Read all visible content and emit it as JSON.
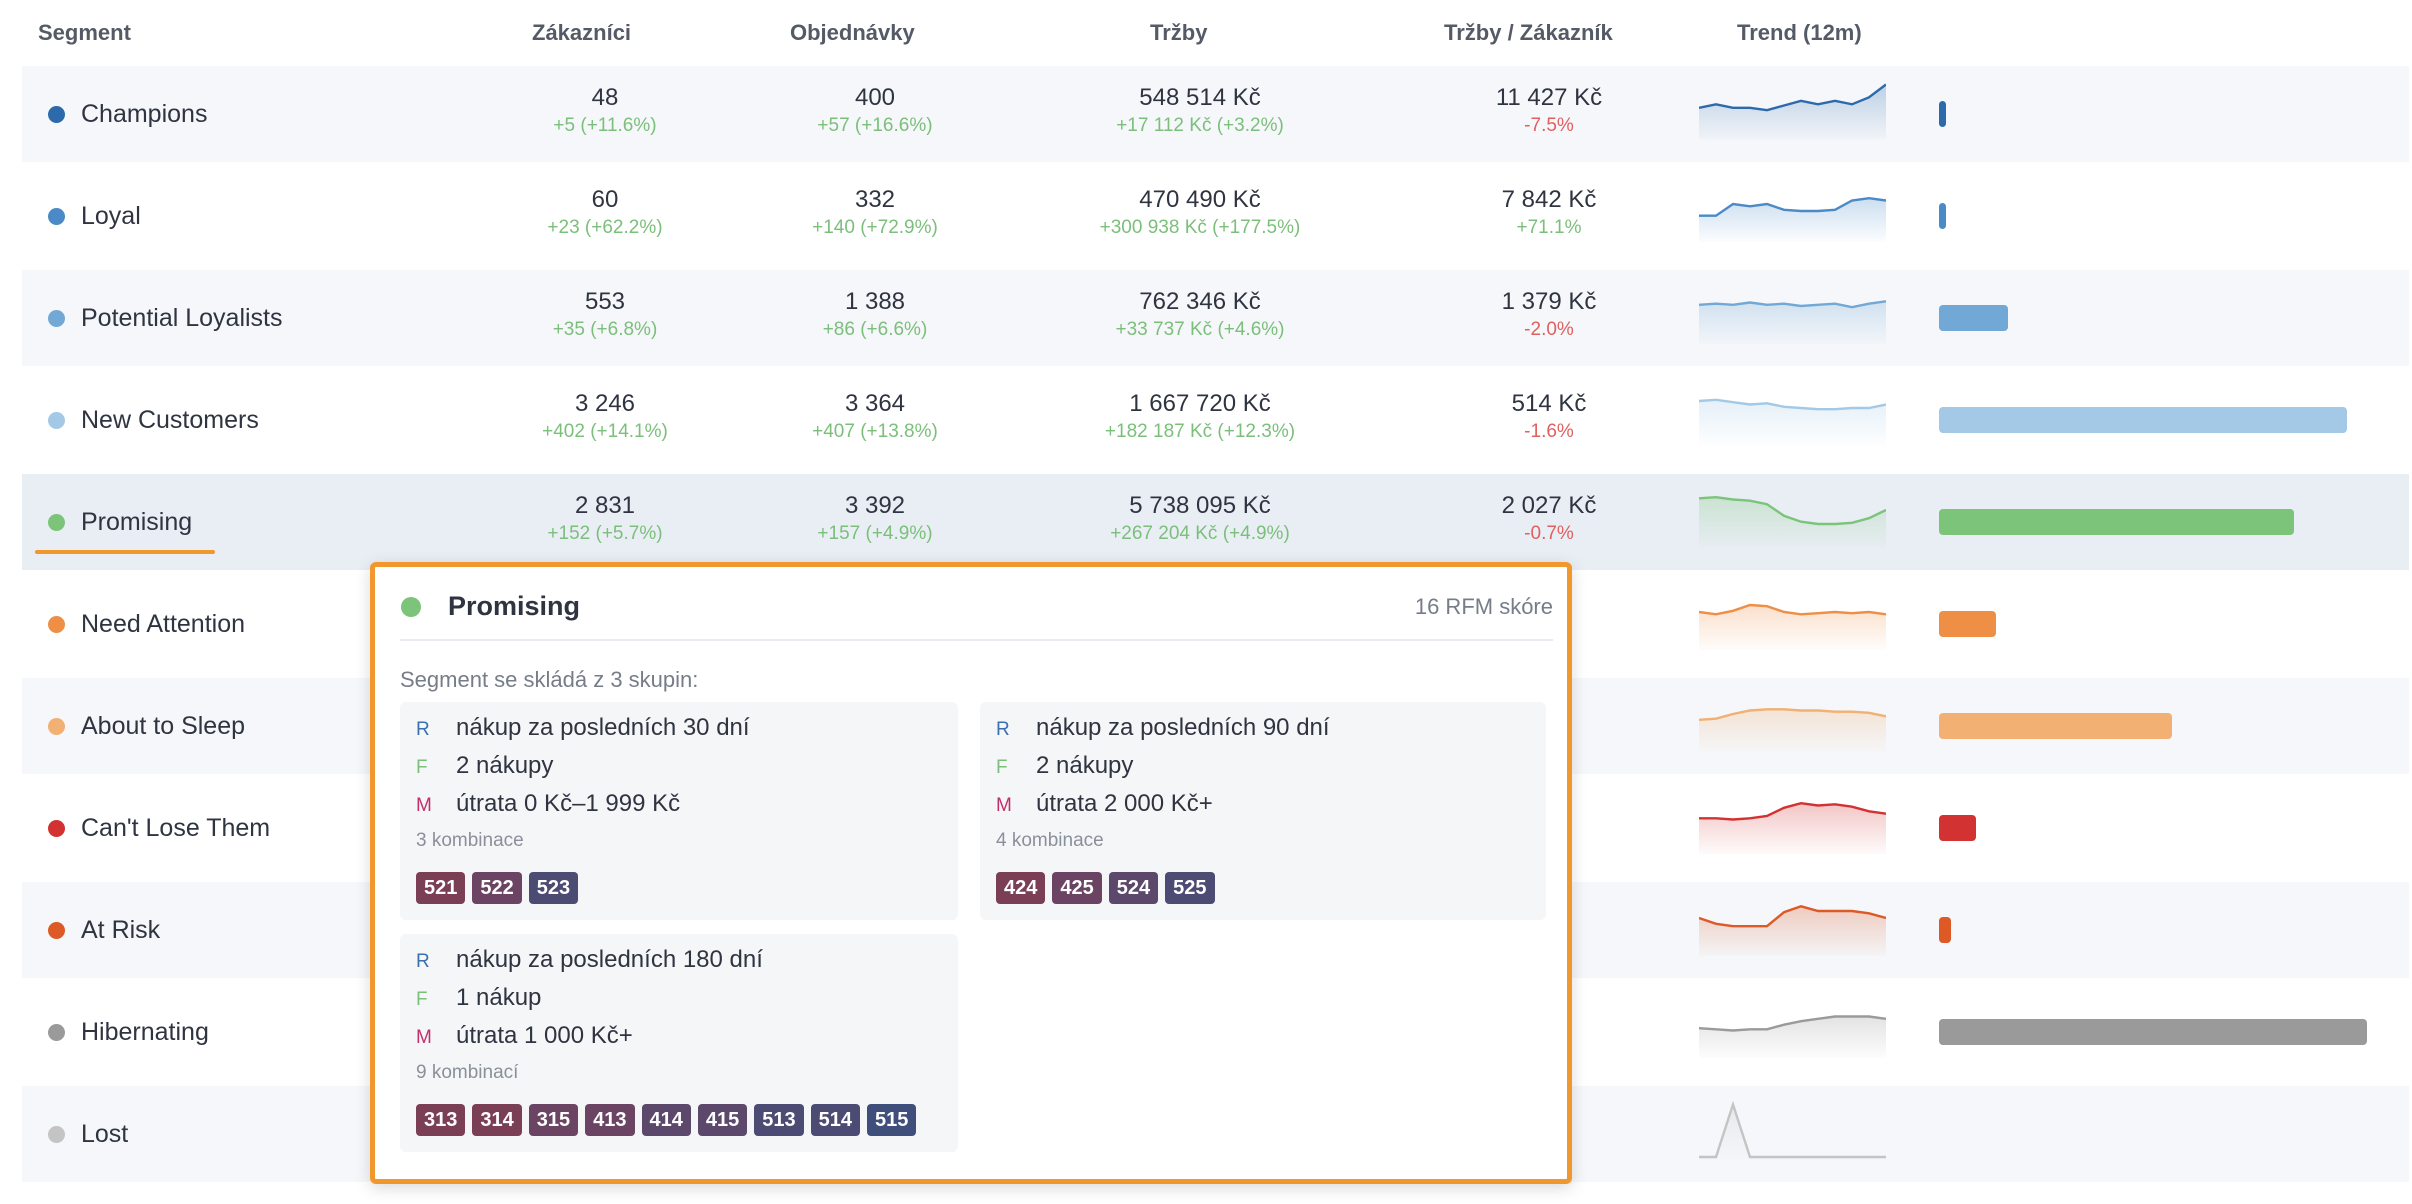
{
  "columns": [
    "Segment",
    "Zákazníci",
    "Objednávky",
    "Tržby",
    "Tržby / Zákazník",
    "Trend (12m)"
  ],
  "rows": [
    {
      "name": "Champions",
      "color": "#2c6aab",
      "customers": "48",
      "customers_delta": "+5 (+11.6%)",
      "orders": "400",
      "orders_delta": "+57 (+16.6%)",
      "revenue": "548 514 Kč",
      "revenue_delta": "+17 112 Kč (+3.2%)",
      "rpc": "11 427 Kč",
      "rpc_delta": "-7.5%",
      "rpc_trend": "neg",
      "trend": [
        5,
        5.6,
        5,
        5,
        4.6,
        5.4,
        6.2,
        5.6,
        6.2,
        5.6,
        6.8,
        9
      ],
      "share": 0.013
    },
    {
      "name": "Loyal",
      "color": "#4a8ac7",
      "customers": "60",
      "customers_delta": "+23 (+62.2%)",
      "orders": "332",
      "orders_delta": "+140 (+72.9%)",
      "revenue": "470 490 Kč",
      "revenue_delta": "+300 938 Kč (+177.5%)",
      "rpc": "7 842 Kč",
      "rpc_delta": "+71.1%",
      "rpc_trend": "pos",
      "trend": [
        4,
        4,
        6,
        5.6,
        6,
        5,
        4.8,
        4.8,
        5,
        6.6,
        7,
        6.6
      ],
      "share": 0.013
    },
    {
      "name": "Potential Loyalists",
      "color": "#72a8d6",
      "customers": "553",
      "customers_delta": "+35 (+6.8%)",
      "orders": "1 388",
      "orders_delta": "+86 (+6.6%)",
      "revenue": "762 346 Kč",
      "revenue_delta": "+33 737 Kč (+4.6%)",
      "rpc": "1 379 Kč",
      "rpc_delta": "-2.0%",
      "rpc_trend": "neg",
      "trend": [
        6.2,
        6.4,
        6.2,
        6.6,
        6.2,
        6.4,
        6,
        6.2,
        6.4,
        5.8,
        6.4,
        6.8
      ],
      "share": 0.17
    },
    {
      "name": "New Customers",
      "color": "#a4c9e6",
      "customers": "3 246",
      "customers_delta": "+402 (+14.1%)",
      "orders": "3 364",
      "orders_delta": "+407 (+13.8%)",
      "revenue": "1 667 720 Kč",
      "revenue_delta": "+182 187 Kč (+12.3%)",
      "rpc": "514 Kč",
      "rpc_delta": "-1.6%",
      "rpc_trend": "neg",
      "trend": [
        7.2,
        7.4,
        7,
        6.6,
        6.8,
        6.2,
        6,
        5.8,
        5.8,
        6,
        6,
        6.6
      ],
      "share": 1
    },
    {
      "name": "Promising",
      "color": "#7cc47a",
      "customers": "2 831",
      "customers_delta": "+152 (+5.7%)",
      "orders": "3 392",
      "orders_delta": "+157 (+4.9%)",
      "revenue": "5 738 095 Kč",
      "revenue_delta": "+267 204 Kč (+4.9%)",
      "rpc": "2 027 Kč",
      "rpc_delta": "-0.7%",
      "rpc_trend": "neg",
      "trend": [
        8,
        8.2,
        7.8,
        7.6,
        7,
        5,
        4,
        3.6,
        3.6,
        3.8,
        4.6,
        6
      ],
      "share": 0.87
    },
    {
      "name": "Need Attention",
      "color": "#ef8e45",
      "customers": "",
      "customers_delta": "",
      "orders": "",
      "orders_delta": "",
      "revenue": "",
      "revenue_delta": "",
      "rpc": "",
      "rpc_delta": "",
      "rpc_trend": "neg",
      "trend": [
        6,
        5.6,
        6.2,
        7.2,
        7,
        6,
        5.6,
        5.8,
        6,
        5.8,
        6,
        5.6
      ],
      "share": 0.14
    },
    {
      "name": "About to Sleep",
      "color": "#f2b072",
      "customers": "",
      "customers_delta": "",
      "orders": "",
      "orders_delta": "",
      "revenue": "",
      "revenue_delta": "",
      "rpc": "",
      "rpc_delta": "",
      "rpc_trend": "neg",
      "trend": [
        5,
        5.2,
        6,
        6.6,
        6.8,
        6.8,
        6.6,
        6.6,
        6.4,
        6.4,
        6.2,
        5.6
      ],
      "share": 0.57
    },
    {
      "name": "Can't Lose Them",
      "color": "#d33232",
      "customers": "",
      "customers_delta": "",
      "orders": "",
      "orders_delta": "",
      "revenue": "",
      "revenue_delta": "",
      "rpc": "",
      "rpc_delta": "",
      "rpc_trend": "neg",
      "trend": [
        5.6,
        5.6,
        5.4,
        5.6,
        6,
        7.4,
        8.2,
        7.8,
        8,
        7.6,
        6.8,
        6.4
      ],
      "share": 0.09
    },
    {
      "name": "At Risk",
      "color": "#dd5a26",
      "customers": "",
      "customers_delta": "",
      "orders": "",
      "orders_delta": "",
      "revenue": "",
      "revenue_delta": "",
      "rpc": "",
      "rpc_delta": "",
      "rpc_trend": "neg",
      "trend": [
        6,
        5,
        4.6,
        4.6,
        4.6,
        7,
        8,
        7.2,
        7.2,
        7.2,
        6.8,
        6
      ],
      "share": 0.03
    },
    {
      "name": "Hibernating",
      "color": "#9a9a9a",
      "customers": "",
      "customers_delta": "",
      "orders": "",
      "orders_delta": "",
      "revenue": "",
      "revenue_delta": "",
      "rpc": "",
      "rpc_delta": "",
      "rpc_trend": "neg",
      "trend": [
        4.6,
        4.4,
        4.2,
        4.4,
        4.4,
        5.2,
        5.8,
        6.2,
        6.6,
        6.6,
        6.6,
        6.2
      ],
      "share": 1.05
    },
    {
      "name": "Lost",
      "color": "#c4c4c4",
      "customers": "",
      "customers_delta": "",
      "orders": "",
      "orders_delta": "",
      "revenue": "",
      "revenue_delta": "",
      "rpc": "",
      "rpc_delta": "",
      "rpc_trend": "neg",
      "trend": [
        0,
        0,
        9,
        0,
        0,
        0,
        0,
        0,
        0,
        0,
        0,
        0
      ],
      "share": 0
    }
  ],
  "popup": {
    "title": "Promising",
    "color": "#7cc47a",
    "score": "16 RFM skóre",
    "description": "Segment se skládá z 3 skupin:",
    "groups": [
      {
        "r": "nákup za posledních 30 dní",
        "f": "2 nákupy",
        "m": "útrata 0 Kč–1 999 Kč",
        "count": "3 kombinace",
        "codes": [
          "521",
          "522",
          "523"
        ]
      },
      {
        "r": "nákup za posledních 90 dní",
        "f": "2 nákupy",
        "m": "útrata 2 000 Kč+",
        "count": "4 kombinace",
        "codes": [
          "424",
          "425",
          "524",
          "525"
        ]
      },
      {
        "r": "nákup za posledních 180 dní",
        "f": "1 nákup",
        "m": "útrata 1 000 Kč+",
        "count": "9 kombinací",
        "codes": [
          "313",
          "314",
          "315",
          "413",
          "414",
          "415",
          "513",
          "514",
          "515"
        ]
      }
    ],
    "letters": {
      "r": "R",
      "f": "F",
      "m": "M"
    }
  }
}
